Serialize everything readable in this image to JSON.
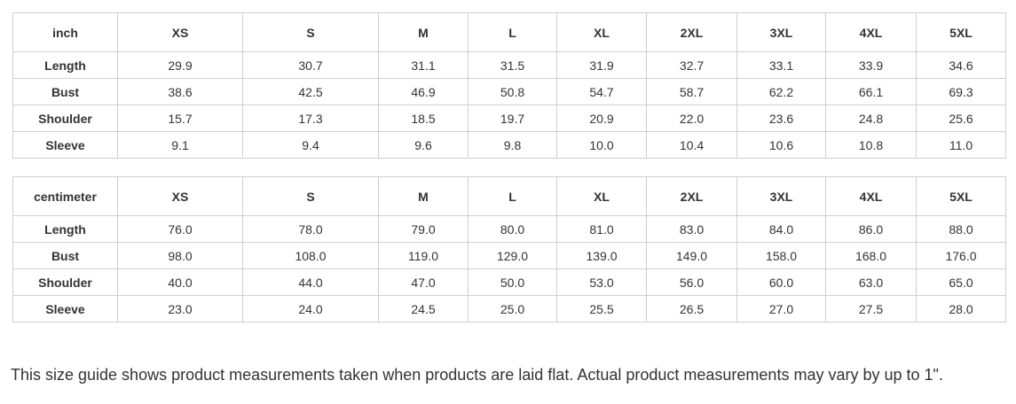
{
  "page": {
    "background_color": "#ffffff",
    "text_color": "#333333",
    "border_color": "#cfcfcf"
  },
  "size_columns": [
    "XS",
    "S",
    "M",
    "L",
    "XL",
    "2XL",
    "3XL",
    "4XL",
    "5XL"
  ],
  "tables": [
    {
      "unit_label": "inch",
      "rows": [
        {
          "label": "Length",
          "values": [
            "29.9",
            "30.7",
            "31.1",
            "31.5",
            "31.9",
            "32.7",
            "33.1",
            "33.9",
            "34.6"
          ]
        },
        {
          "label": "Bust",
          "values": [
            "38.6",
            "42.5",
            "46.9",
            "50.8",
            "54.7",
            "58.7",
            "62.2",
            "66.1",
            "69.3"
          ]
        },
        {
          "label": "Shoulder",
          "values": [
            "15.7",
            "17.3",
            "18.5",
            "19.7",
            "20.9",
            "22.0",
            "23.6",
            "24.8",
            "25.6"
          ]
        },
        {
          "label": "Sleeve",
          "values": [
            "9.1",
            "9.4",
            "9.6",
            "9.8",
            "10.0",
            "10.4",
            "10.6",
            "10.8",
            "11.0"
          ]
        }
      ]
    },
    {
      "unit_label": "centimeter",
      "rows": [
        {
          "label": "Length",
          "values": [
            "76.0",
            "78.0",
            "79.0",
            "80.0",
            "81.0",
            "83.0",
            "84.0",
            "86.0",
            "88.0"
          ]
        },
        {
          "label": "Bust",
          "values": [
            "98.0",
            "108.0",
            "119.0",
            "129.0",
            "139.0",
            "149.0",
            "158.0",
            "168.0",
            "176.0"
          ]
        },
        {
          "label": "Shoulder",
          "values": [
            "40.0",
            "44.0",
            "47.0",
            "50.0",
            "53.0",
            "56.0",
            "60.0",
            "63.0",
            "65.0"
          ]
        },
        {
          "label": "Sleeve",
          "values": [
            "23.0",
            "24.0",
            "24.5",
            "25.0",
            "25.5",
            "26.5",
            "27.0",
            "27.5",
            "28.0"
          ]
        }
      ]
    }
  ],
  "footer": {
    "note": "This size guide shows product measurements taken when products are laid flat. Actual product measurements may vary by up to 1\"."
  }
}
